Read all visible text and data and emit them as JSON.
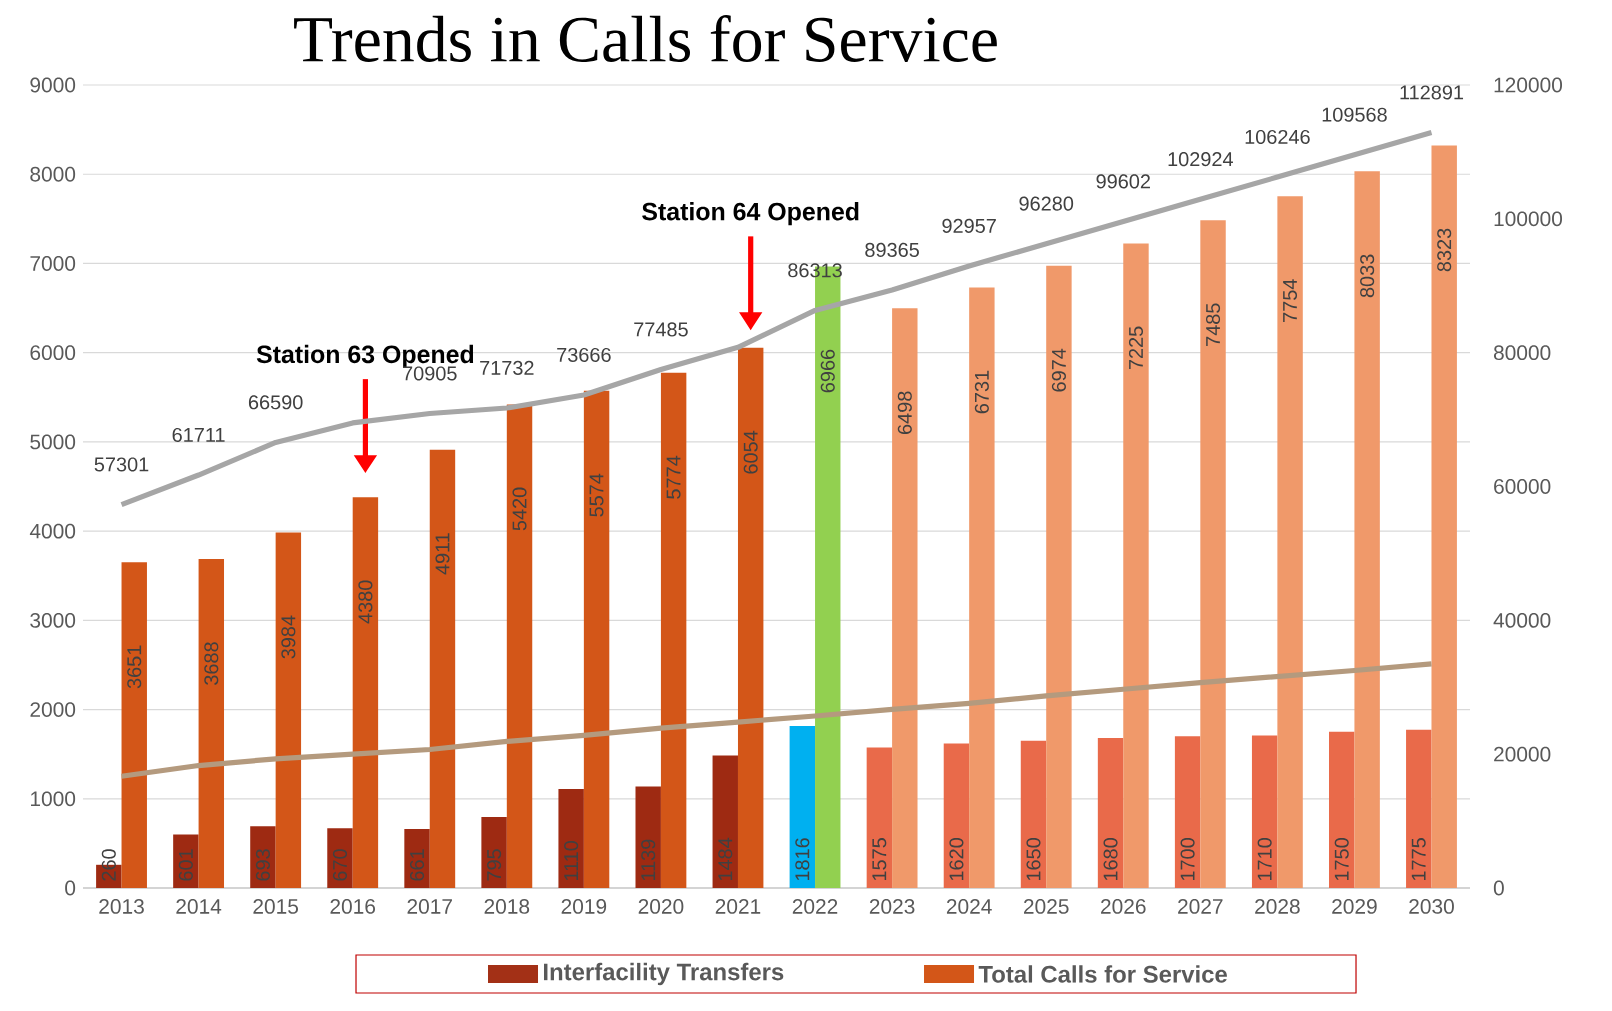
{
  "chart_data": {
    "type": "bar",
    "title": "Trends in Calls for Service",
    "categories": [
      "2013",
      "2014",
      "2015",
      "2016",
      "2017",
      "2018",
      "2019",
      "2020",
      "2021",
      "2022",
      "2023",
      "2024",
      "2025",
      "2026",
      "2027",
      "2028",
      "2029",
      "2030"
    ],
    "series": [
      {
        "name": "Interfacility Transfers",
        "color": "#a33016",
        "colors": [
          "#9e2a12",
          "#9e2a12",
          "#9e2a12",
          "#9e2a12",
          "#9e2a12",
          "#9e2a12",
          "#9e2a12",
          "#9e2a12",
          "#9e2a12",
          "#00b0f0",
          "#e96a4a",
          "#e96a4a",
          "#e96a4a",
          "#e96a4a",
          "#e96a4a",
          "#e96a4a",
          "#e96a4a",
          "#e96a4a"
        ],
        "values": [
          260,
          601,
          693,
          670,
          661,
          795,
          1110,
          1139,
          1484,
          1816,
          1575,
          1620,
          1650,
          1680,
          1700,
          1710,
          1750,
          1775
        ],
        "value_labels": [
          "260",
          "601",
          "693",
          "670",
          "661",
          "795",
          "1110",
          "1139",
          "1484",
          "1816",
          "1575",
          "1620",
          "1650",
          "1680",
          "1700",
          "1710",
          "1750",
          "1775"
        ]
      },
      {
        "name": "Total Calls for Service",
        "color": "#d35618",
        "colors": [
          "#d35618",
          "#d35618",
          "#d35618",
          "#d35618",
          "#d35618",
          "#d35618",
          "#d35618",
          "#d35618",
          "#d35618",
          "#92d050",
          "#f0996a",
          "#f0996a",
          "#f0996a",
          "#f0996a",
          "#f0996a",
          "#f0996a",
          "#f0996a",
          "#f0996a"
        ],
        "values": [
          3651,
          3688,
          3984,
          4380,
          4911,
          5420,
          5574,
          5774,
          6054,
          6966,
          6498,
          6731,
          6974,
          7225,
          7485,
          7754,
          8033,
          8323
        ],
        "value_labels": [
          "3651",
          "3688",
          "3984",
          "4380",
          "4911",
          "5420",
          "5574",
          "5774",
          "6054",
          "6966",
          "6498",
          "6731",
          "6974",
          "7225",
          "7485",
          "7754",
          "8033",
          "8323"
        ]
      },
      {
        "type": "line",
        "axis": "y2",
        "color": "#a6a6a6",
        "values": [
          57301,
          61711,
          66590,
          69500,
          70905,
          71732,
          73666,
          77485,
          80800,
          86313,
          89365,
          92957,
          96280,
          99602,
          102924,
          106246,
          109568,
          112891
        ],
        "value_labels": [
          "57301",
          "61711",
          "66590",
          null,
          "70905",
          "71732",
          "73666",
          "77485",
          null,
          "86313",
          "89365",
          "92957",
          "96280",
          "99602",
          "102924",
          "106246",
          "109568",
          "112891"
        ]
      },
      {
        "type": "line",
        "axis": "y2",
        "color": "#b49a7e",
        "values": [
          16700,
          18300,
          19300,
          20000,
          20700,
          21900,
          22800,
          23900,
          24800,
          25700,
          26700,
          27600,
          28700,
          29700,
          30700,
          31600,
          32500,
          33500
        ]
      }
    ],
    "ylim": [
      0,
      9000
    ],
    "yticks": [
      0,
      1000,
      2000,
      3000,
      4000,
      5000,
      6000,
      7000,
      8000,
      9000
    ],
    "y2lim": [
      0,
      120000
    ],
    "y2ticks": [
      0,
      20000,
      40000,
      60000,
      80000,
      100000,
      120000
    ],
    "annotations": [
      "Station 63 Opened",
      "Station 64 Opened"
    ],
    "grid": "y",
    "legend": "bottom",
    "marker": "none",
    "line_style": "solid"
  }
}
